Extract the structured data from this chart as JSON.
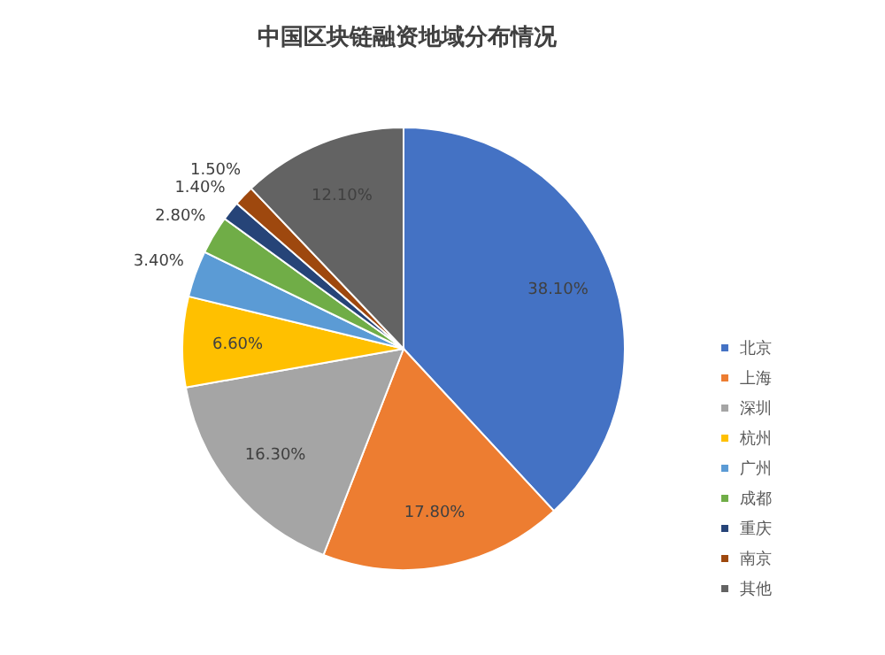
{
  "chart_data": {
    "type": "pie",
    "title": "中国区块链融资地域分布情况",
    "categories": [
      "北京",
      "上海",
      "深圳",
      "杭州",
      "广州",
      "成都",
      "重庆",
      "南京",
      "其他"
    ],
    "values": [
      38.1,
      17.8,
      16.3,
      6.6,
      3.4,
      2.8,
      1.4,
      1.5,
      12.1
    ],
    "colors": [
      "#4472c4",
      "#ed7d31",
      "#a5a5a5",
      "#ffc000",
      "#5b9bd5",
      "#70ad47",
      "#264478",
      "#9e480e",
      "#636363"
    ],
    "value_labels": [
      "38.10%",
      "17.80%",
      "16.30%",
      "6.60%",
      "3.40%",
      "2.80%",
      "1.40%",
      "1.50%",
      "12.10%"
    ],
    "legend": "right"
  }
}
